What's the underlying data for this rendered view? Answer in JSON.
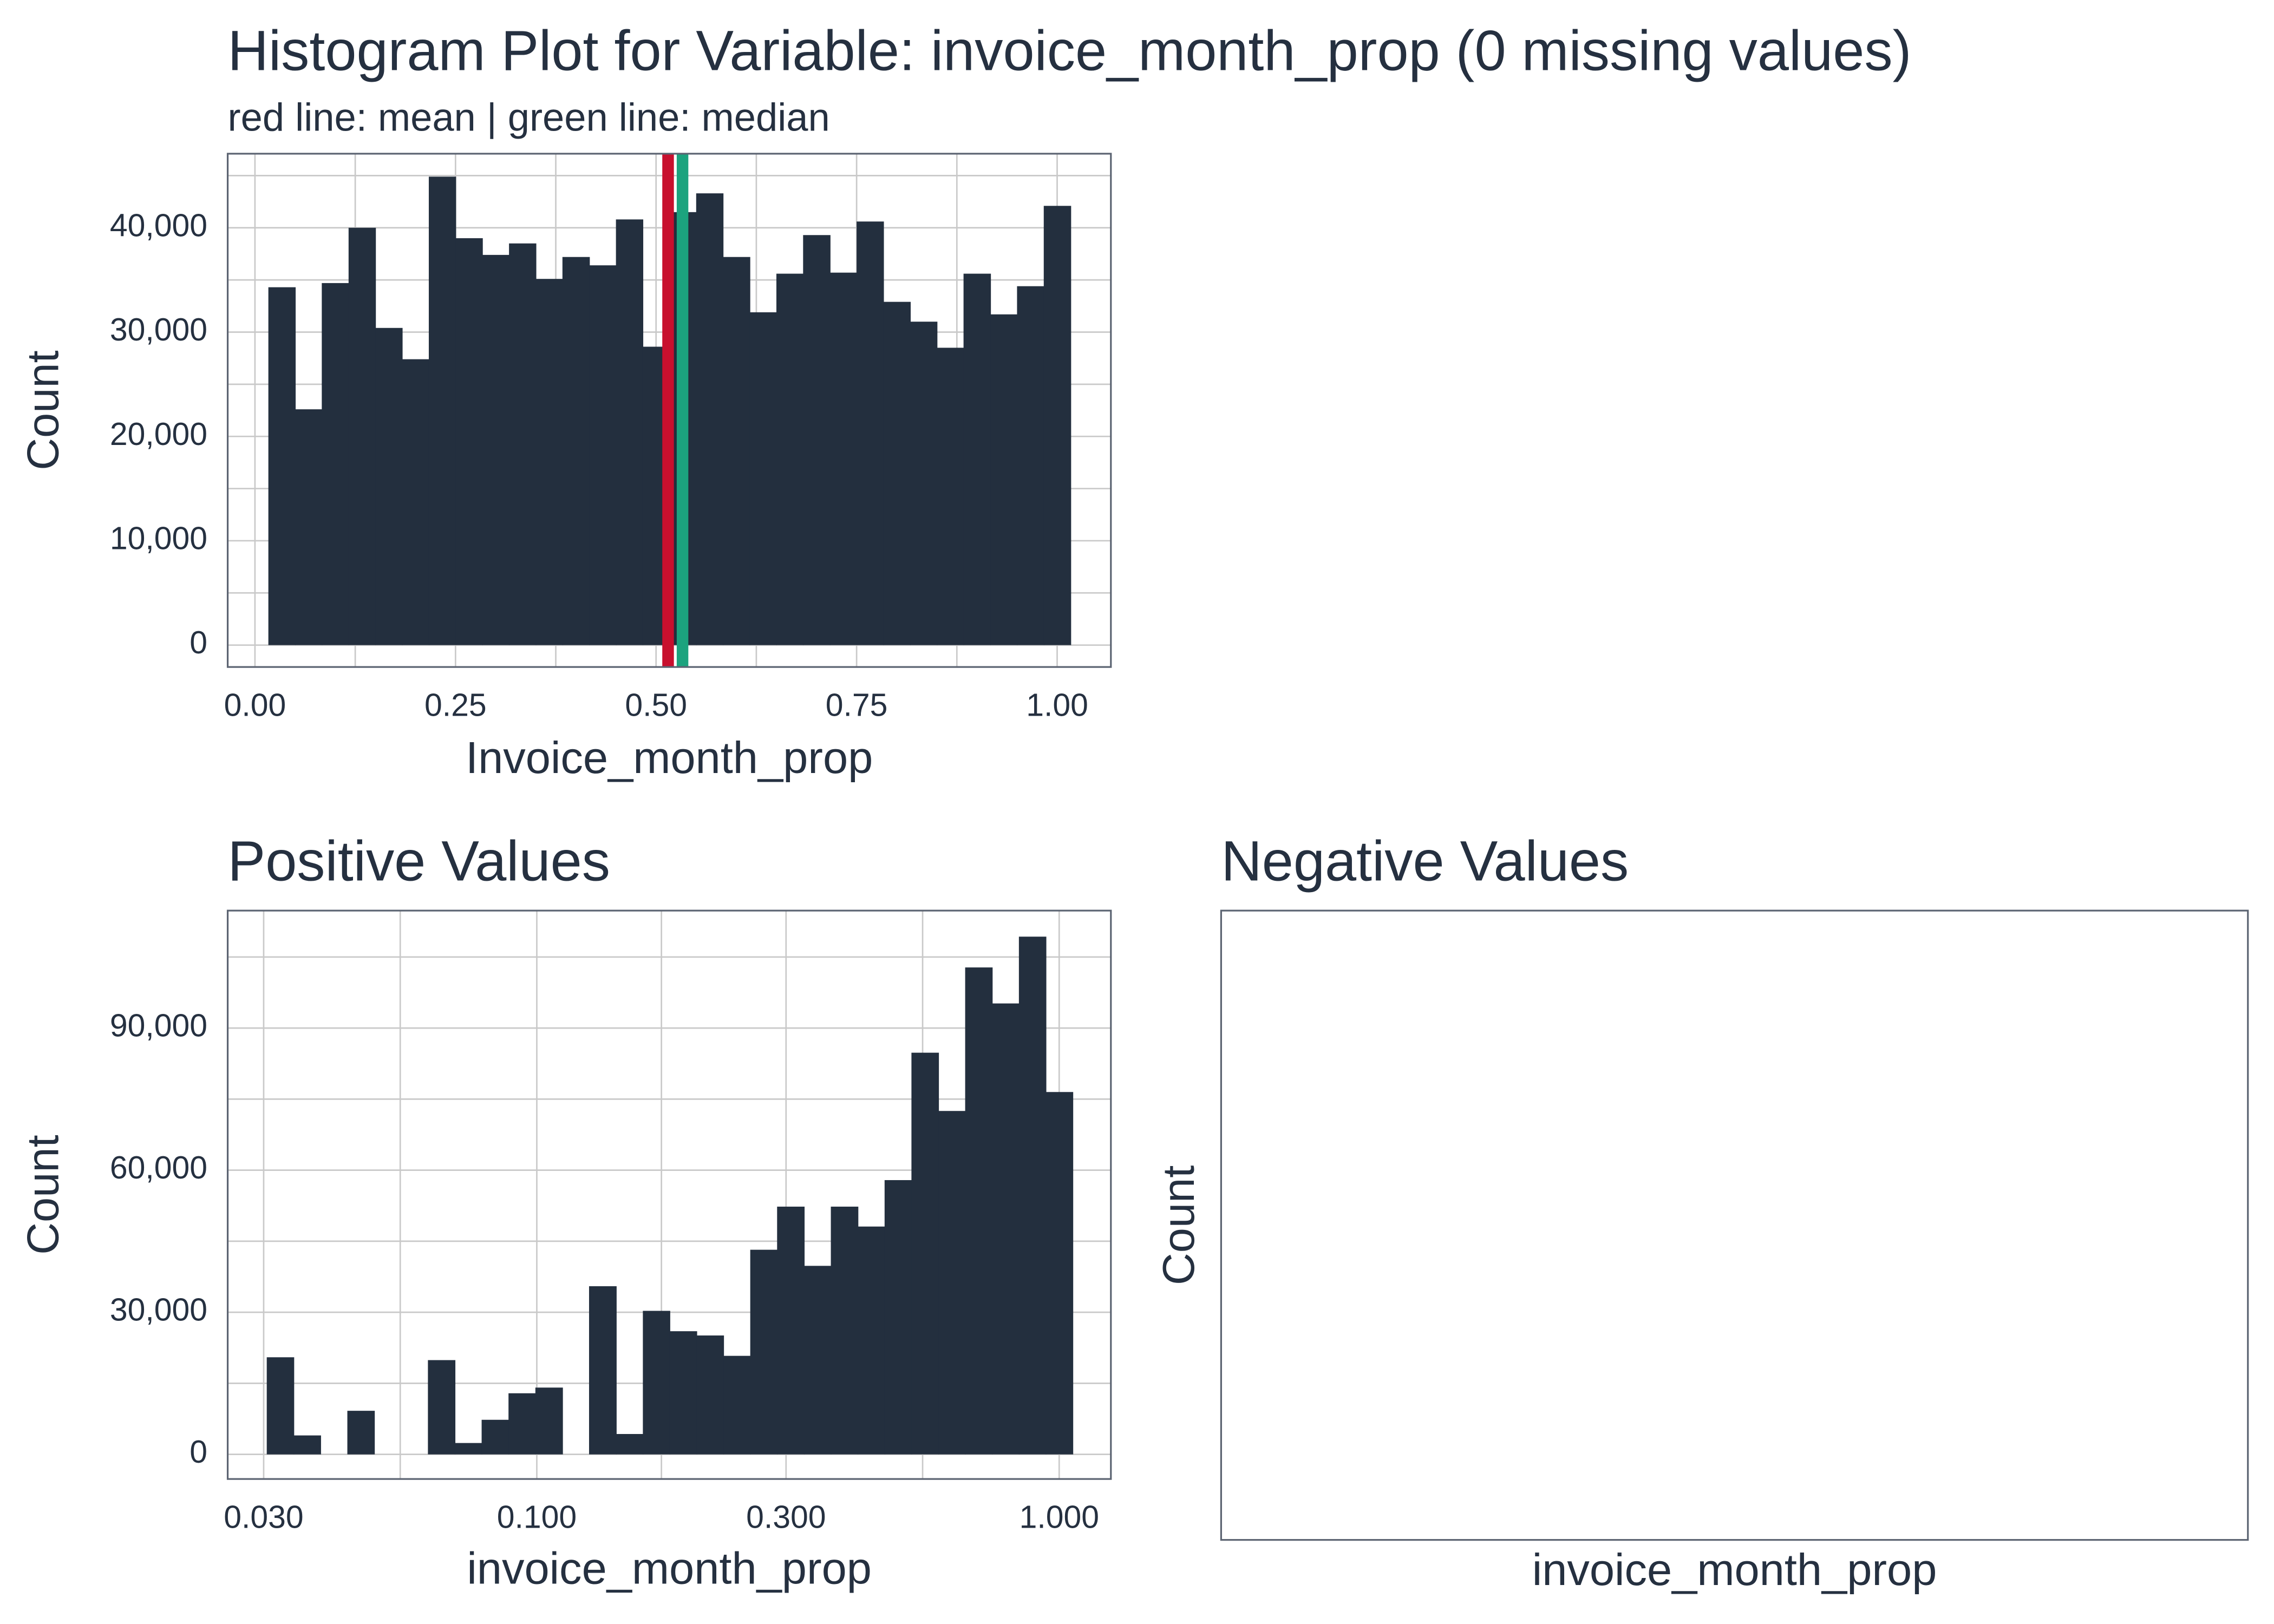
{
  "chart_data": [
    {
      "type": "histogram",
      "title": "Histogram Plot for Variable: invoice_month_prop (0 missing values)",
      "subtitle": "red line: mean | green line: median",
      "x_label": "Invoice_month_prop",
      "y_label": "Count",
      "bins": [
        0.0167,
        0.05,
        0.0833,
        0.1167,
        0.15,
        0.1833,
        0.2167,
        0.25,
        0.2833,
        0.3167,
        0.35,
        0.3833,
        0.4167,
        0.45,
        0.4833,
        0.5167,
        0.55,
        0.5833,
        0.6167,
        0.65,
        0.6833,
        0.7167,
        0.75,
        0.7833,
        0.8167,
        0.85,
        0.8833,
        0.9167,
        0.95,
        0.9833,
        1.0167
      ],
      "values": [
        34300,
        22600,
        34700,
        40000,
        30400,
        27400,
        44900,
        39000,
        37400,
        38500,
        35100,
        37200,
        36400,
        40800,
        28600,
        41500,
        43300,
        37200,
        31900,
        35600,
        39300,
        35700,
        40600,
        32900,
        31000,
        28500,
        35600,
        31700,
        34400,
        42100
      ],
      "color": "#232f3e",
      "mean_line": {
        "value": 0.515,
        "color": "#c8102e"
      },
      "median_line": {
        "value": 0.533,
        "color": "#1ca37e"
      },
      "xlim": [
        -0.034,
        1.067
      ],
      "ylim": [
        -2100,
        47100
      ],
      "xticks": [
        {
          "value": 0,
          "label": "0.00"
        },
        {
          "value": 0.25,
          "label": "0.25"
        },
        {
          "value": 0.5,
          "label": "0.50"
        },
        {
          "value": 0.75,
          "label": "0.75"
        },
        {
          "value": 1,
          "label": "1.00"
        }
      ],
      "yticks": [
        0,
        {
          "value": 10000,
          "label": "10,000"
        },
        {
          "value": 20000,
          "label": "20,000"
        },
        {
          "value": 30000,
          "label": "30,000"
        },
        {
          "value": 40000,
          "label": "40,000"
        }
      ],
      "log_x": false,
      "grid": true
    },
    {
      "type": "histogram",
      "title": "Positive Values",
      "x_label": "invoice_month_prop",
      "y_label": "Count",
      "bins": [
        0.03041,
        0.03423,
        0.03853,
        0.04338,
        0.04883,
        0.05497,
        0.06188,
        0.06966,
        0.07841,
        0.08827,
        0.09937,
        0.1119,
        0.1259,
        0.1418,
        0.1596,
        0.1796,
        0.2022,
        0.2276,
        0.2562,
        0.2884,
        0.3247,
        0.3655,
        0.4115,
        0.4632,
        0.5214,
        0.587,
        0.6607,
        0.7438,
        0.8373,
        0.9425,
        1.061
      ],
      "values": [
        20500,
        4000,
        0,
        9200,
        0,
        0,
        19900,
        2400,
        7300,
        12900,
        14100,
        0,
        35500,
        4300,
        30300,
        26000,
        25100,
        20800,
        43200,
        52300,
        39800,
        52300,
        48100,
        57900,
        84800,
        72500,
        102800,
        95200,
        109300,
        76500
      ],
      "color": "#232f3e",
      "xlim": [
        0.0256,
        1.256
      ],
      "ylim": [
        -5200,
        114800
      ],
      "xticks": [
        {
          "value": 0.03,
          "label": "0.030"
        },
        {
          "value": 0.1,
          "label": "0.100"
        },
        {
          "value": 0.3,
          "label": "0.300"
        },
        {
          "value": 1,
          "label": "1.000"
        }
      ],
      "yticks": [
        0,
        {
          "value": 30000,
          "label": "30,000"
        },
        {
          "value": 60000,
          "label": "60,000"
        },
        {
          "value": 90000,
          "label": "90,000"
        }
      ],
      "log_x": true,
      "grid": true
    },
    {
      "type": "histogram",
      "title": "Negative Values",
      "x_label": "invoice_month_prop",
      "y_label": "Count"
    }
  ]
}
